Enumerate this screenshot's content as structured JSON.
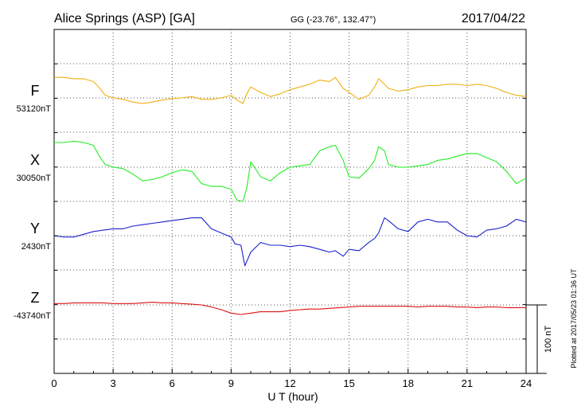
{
  "header": {
    "station": "Alice Springs (ASP)  [GA]",
    "coords": "GG (-23.76°, 132.47°)",
    "date": "2017/04/22"
  },
  "side_note": "Plotted at 2017/05/23 01:36 UT",
  "scale_label": "100 nT",
  "chart_data": {
    "type": "line",
    "xlabel": "U T (hour)",
    "xlim": [
      0,
      24
    ],
    "xticks": [
      "0",
      "3",
      "6",
      "9",
      "12",
      "15",
      "18",
      "21",
      "24"
    ],
    "grid": true,
    "scale_bar_nT": 100,
    "series": [
      {
        "name": "F",
        "baseline_label": "53120nT",
        "color": "#f0b010",
        "x": [
          0,
          0.5,
          1,
          1.5,
          2,
          2.3,
          2.6,
          3,
          3.5,
          4,
          4.5,
          5,
          5.5,
          6,
          6.5,
          7,
          7.5,
          8,
          8.5,
          9,
          9.3,
          9.6,
          9.8,
          10,
          10.5,
          11,
          11.5,
          12,
          12.5,
          13,
          13.5,
          14,
          14.3,
          14.7,
          15,
          15.5,
          16,
          16.3,
          16.5,
          16.8,
          17,
          17.5,
          18,
          18.5,
          19,
          19.5,
          20,
          20.5,
          21,
          21.5,
          22,
          22.5,
          23,
          23.5,
          24
        ],
        "y": [
          30,
          30,
          28,
          28,
          24,
          15,
          4,
          0,
          -2,
          -6,
          -8,
          -6,
          -3,
          -1,
          0,
          2,
          -2,
          -2,
          0,
          4,
          -3,
          -8,
          6,
          16,
          8,
          2,
          6,
          12,
          16,
          20,
          26,
          24,
          30,
          14,
          8,
          -2,
          4,
          16,
          28,
          20,
          14,
          10,
          12,
          16,
          18,
          18,
          20,
          20,
          18,
          20,
          18,
          14,
          8,
          4,
          2
        ]
      },
      {
        "name": "X",
        "baseline_label": "30050nT",
        "color": "#22ee22",
        "x": [
          0,
          0.5,
          1,
          1.5,
          2,
          2.3,
          2.6,
          3,
          3.5,
          4,
          4.5,
          5,
          5.5,
          6,
          6.5,
          7,
          7.5,
          8,
          8.5,
          9,
          9.3,
          9.6,
          9.8,
          10,
          10.5,
          11,
          11.5,
          12,
          12.5,
          13,
          13.5,
          14,
          14.3,
          14.7,
          15,
          15.5,
          16,
          16.3,
          16.5,
          16.8,
          17,
          17.5,
          18,
          18.5,
          19,
          19.5,
          20,
          20.5,
          21,
          21.5,
          22,
          22.5,
          23,
          23.5,
          24
        ],
        "y": [
          36,
          36,
          38,
          36,
          32,
          16,
          4,
          0,
          -2,
          -10,
          -20,
          -18,
          -14,
          -8,
          -4,
          -6,
          -24,
          -28,
          -28,
          -32,
          -48,
          -50,
          -30,
          8,
          -14,
          -20,
          -8,
          0,
          2,
          4,
          24,
          30,
          32,
          10,
          -14,
          -16,
          -2,
          10,
          30,
          24,
          4,
          0,
          0,
          2,
          4,
          10,
          12,
          16,
          20,
          20,
          14,
          8,
          -6,
          -24,
          -16
        ]
      },
      {
        "name": "Y",
        "baseline_label": "2430nT",
        "color": "#1a22cc",
        "x": [
          0,
          0.5,
          1,
          1.5,
          2,
          2.5,
          3,
          3.5,
          4,
          4.5,
          5,
          5.5,
          6,
          6.5,
          7,
          7.5,
          8,
          8.5,
          9,
          9.2,
          9.5,
          9.7,
          10,
          10.5,
          11,
          11.5,
          12,
          12.5,
          13,
          13.5,
          14,
          14.3,
          14.7,
          15,
          15.5,
          16,
          16.3,
          16.5,
          16.8,
          17,
          17.5,
          18,
          18.5,
          19,
          19.5,
          20,
          20.5,
          21,
          21.5,
          22,
          22.5,
          23,
          23.5,
          24
        ],
        "y": [
          0,
          -2,
          -2,
          2,
          6,
          8,
          10,
          10,
          14,
          16,
          18,
          20,
          22,
          24,
          26,
          26,
          10,
          4,
          -2,
          -12,
          -14,
          -44,
          -24,
          -10,
          -14,
          -14,
          -16,
          -14,
          -16,
          -20,
          -24,
          -22,
          -30,
          -20,
          -22,
          -10,
          -4,
          4,
          26,
          22,
          10,
          6,
          20,
          24,
          20,
          20,
          8,
          0,
          -2,
          8,
          10,
          14,
          24,
          20
        ]
      },
      {
        "name": "Z",
        "baseline_label": "-43740nT",
        "color": "#dd1111",
        "x": [
          0,
          0.5,
          1,
          1.5,
          2,
          2.5,
          3,
          3.5,
          4,
          4.5,
          5,
          5.5,
          6,
          6.5,
          7,
          7.5,
          8,
          8.5,
          9,
          9.5,
          10,
          10.5,
          11,
          11.5,
          12,
          12.5,
          13,
          13.5,
          14,
          14.5,
          15,
          15.5,
          16,
          16.5,
          17,
          17.5,
          18,
          18.5,
          19,
          19.5,
          20,
          20.5,
          21,
          21.5,
          22,
          22.5,
          23,
          23.5,
          24
        ],
        "y": [
          2,
          2,
          3,
          3,
          3,
          3,
          2,
          2,
          2,
          3,
          4,
          3,
          3,
          2,
          1,
          0,
          -3,
          -7,
          -12,
          -14,
          -12,
          -10,
          -10,
          -10,
          -8,
          -7,
          -6,
          -6,
          -5,
          -4,
          -3,
          -2,
          -2,
          -2,
          -2,
          -2,
          -2,
          -3,
          -2,
          -2,
          -2,
          -3,
          -3,
          -4,
          -3,
          -3,
          -4,
          -4,
          -4
        ]
      }
    ]
  }
}
